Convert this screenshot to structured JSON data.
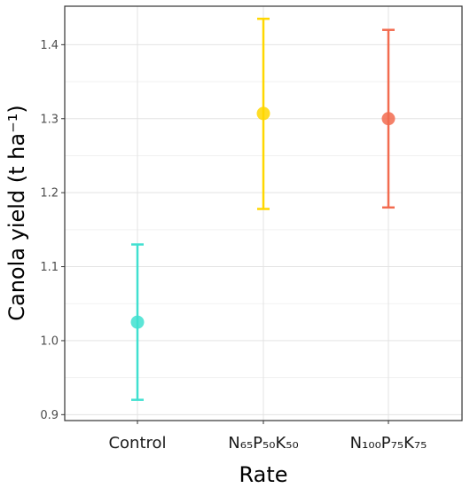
{
  "chart_data": {
    "type": "scatter",
    "title": "",
    "xlabel": "Rate",
    "ylabel": "Canola yield (t ha⁻¹)",
    "categories": [
      "Control",
      "N₆₅P₅₀K₅₀",
      "N₁₀₀P₇₅K₇₅"
    ],
    "values": [
      1.025,
      1.307,
      1.3
    ],
    "error_low": [
      0.92,
      1.178,
      1.18
    ],
    "error_high": [
      1.13,
      1.435,
      1.42
    ],
    "colors": [
      "#40E0D0",
      "#FFD700",
      "#F26B4F"
    ],
    "ylim": [
      0.892,
      1.452
    ],
    "y_ticks": [
      0.9,
      1.0,
      1.1,
      1.2,
      1.3,
      1.4
    ],
    "y_tick_labels": [
      "0.9",
      "1.0",
      "1.1",
      "1.2",
      "1.3",
      "1.4"
    ],
    "grid": true,
    "legend": "none"
  }
}
